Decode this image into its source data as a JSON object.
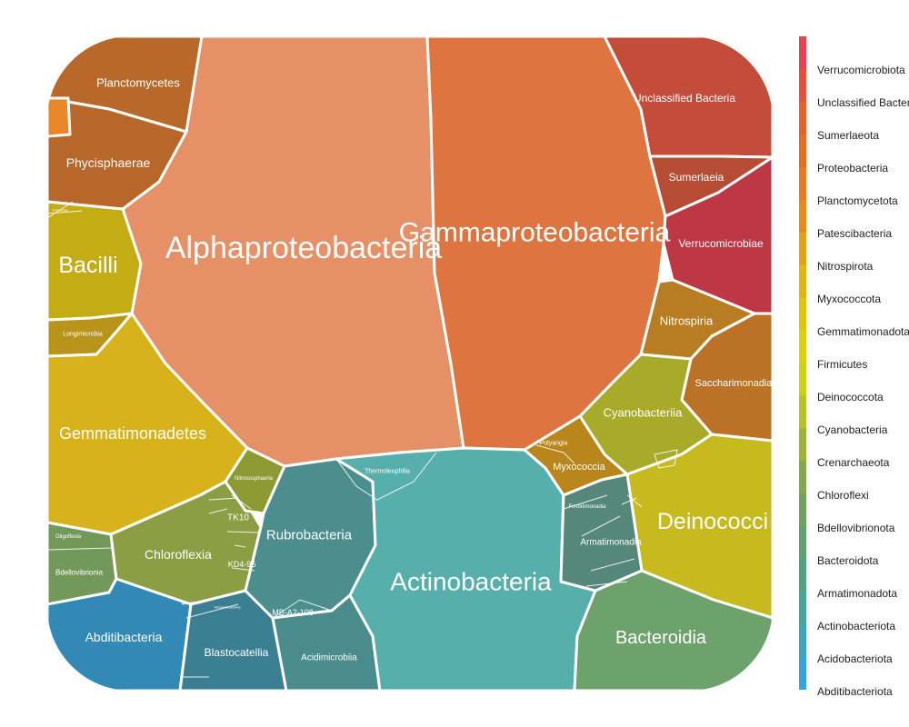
{
  "chart_data": {
    "type": "voronoi-treemap",
    "cells": [
      {
        "label": "Alphaproteobacteria",
        "phylum": "Proteobacteria",
        "color": "#E59066"
      },
      {
        "label": "Gammaproteobacteria",
        "phylum": "Proteobacteria",
        "color": "#DE7540"
      },
      {
        "label": "Planctomycetes",
        "phylum": "Planctomycetota",
        "color": "#B86828"
      },
      {
        "label": "Phycisphaerae",
        "phylum": "Planctomycetota",
        "color": "#B8672B"
      },
      {
        "label": "Bacilli",
        "phylum": "Firmicutes",
        "color": "#C4AC14"
      },
      {
        "label": "Longimicrobia",
        "phylum": "Gemmatimonadota",
        "color": "#B8941A"
      },
      {
        "label": "Gemmatimonadetes",
        "phylum": "Gemmatimonadota",
        "color": "#D8B21A"
      },
      {
        "label": "Oligoflexia",
        "phylum": "Bdellovibrionota",
        "color": "#73995A"
      },
      {
        "label": "Bdellovibrionia",
        "phylum": "Bdellovibrionota",
        "color": "#73995A"
      },
      {
        "label": "Chloroflexia",
        "phylum": "Chloroflexi",
        "color": "#8C9E44"
      },
      {
        "label": "TK10",
        "phylum": "Chloroflexi",
        "color": "#8C9E44"
      },
      {
        "label": "KD4-96",
        "phylum": "Chloroflexi",
        "color": "#8C9E44"
      },
      {
        "label": "Nitrososphaeria",
        "phylum": "Crenarchaeota",
        "color": "#8C9A33"
      },
      {
        "label": "Abditibacteria",
        "phylum": "Abditibacteriota",
        "color": "#3289B6"
      },
      {
        "label": "Blastocatellia",
        "phylum": "Acidobacteriota",
        "color": "#3A8092"
      },
      {
        "label": "Thermoleophilia",
        "phylum": "Actinobacteriota",
        "color": "#4A8C88"
      },
      {
        "label": "Rubrobacteria",
        "phylum": "Actinobacteriota",
        "color": "#4C8E8E"
      },
      {
        "label": "MB-A2-108",
        "phylum": "Actinobacteriota",
        "color": "#4A8A8C"
      },
      {
        "label": "Acidimicrobiia",
        "phylum": "Actinobacteriota",
        "color": "#4A8C8C"
      },
      {
        "label": "Actinobacteria",
        "phylum": "Actinobacteriota",
        "color": "#57AFAB"
      },
      {
        "label": "Unclassified Bacteria",
        "phylum": "Unclassified Bacteria",
        "color": "#C44C3A"
      },
      {
        "label": "Sumerlaeia",
        "phylum": "Sumerlaeota",
        "color": "#B54C33"
      },
      {
        "label": "Verrucomicrobiae",
        "phylum": "Verrucomicrobiota",
        "color": "#BE3745"
      },
      {
        "label": "Nitrospiria",
        "phylum": "Nitrospirota",
        "color": "#B87C22"
      },
      {
        "label": "Saccharimonadia",
        "phylum": "Patescibacteria",
        "color": "#BC7226"
      },
      {
        "label": "Cyanobacteriia",
        "phylum": "Cyanobacteria",
        "color": "#A8AA2A"
      },
      {
        "label": "Polyangia",
        "phylum": "Myxococcota",
        "color": "#B8861A"
      },
      {
        "label": "Myxococcia",
        "phylum": "Myxococcota",
        "color": "#B8861A"
      },
      {
        "label": "Deinococci",
        "phylum": "Deinococcota",
        "color": "#C6BA1E"
      },
      {
        "label": "Fimbriimonadia",
        "phylum": "Armatimonadota",
        "color": "#55877A"
      },
      {
        "label": "Armatimonadia",
        "phylum": "Armatimonadota",
        "color": "#55877A"
      },
      {
        "label": "Bacteroidia",
        "phylum": "Bacteroidota",
        "color": "#6EA26C"
      },
      {
        "label": "Chlorobia",
        "phylum": "",
        "color": "#C4AC14"
      },
      {
        "label": "Chloroflexia",
        "phylum": "",
        "color": "#8C9E44"
      },
      {
        "label": "Vicinamibacteria",
        "phylum": "",
        "color": "#3A8092"
      }
    ],
    "legend": [
      {
        "label": "Verrucomicrobiota",
        "color": "#E8414F"
      },
      {
        "label": "Unclassified Bacteria",
        "color": "#E8503A"
      },
      {
        "label": "Sumerlaeota",
        "color": "#E85F2C"
      },
      {
        "label": "Proteobacteria",
        "color": "#E96C23"
      },
      {
        "label": "Planctomycetota",
        "color": "#EA7A1E"
      },
      {
        "label": "Patescibacteria",
        "color": "#E98919"
      },
      {
        "label": "Nitrospirota",
        "color": "#E8A013"
      },
      {
        "label": "Myxococcota",
        "color": "#E4B40F"
      },
      {
        "label": "Gemmatimonadota",
        "color": "#E1C40D"
      },
      {
        "label": "Firmicutes",
        "color": "#DCD00F"
      },
      {
        "label": "Deinococcota",
        "color": "#CFD116"
      },
      {
        "label": "Cyanobacteria",
        "color": "#B7C326"
      },
      {
        "label": "Crenarchaeota",
        "color": "#9CB337"
      },
      {
        "label": "Chloroflexi",
        "color": "#84A84A"
      },
      {
        "label": "Bdellovibrionota",
        "color": "#6FA35E"
      },
      {
        "label": "Bacteroidota",
        "color": "#5EA26F"
      },
      {
        "label": "Armatimonadota",
        "color": "#50A47E"
      },
      {
        "label": "Actinobacteriota",
        "color": "#45A79A"
      },
      {
        "label": "Acidobacteriota",
        "color": "#3DA6BC"
      },
      {
        "label": "Abditibacteriota",
        "color": "#34A3DE"
      }
    ]
  }
}
